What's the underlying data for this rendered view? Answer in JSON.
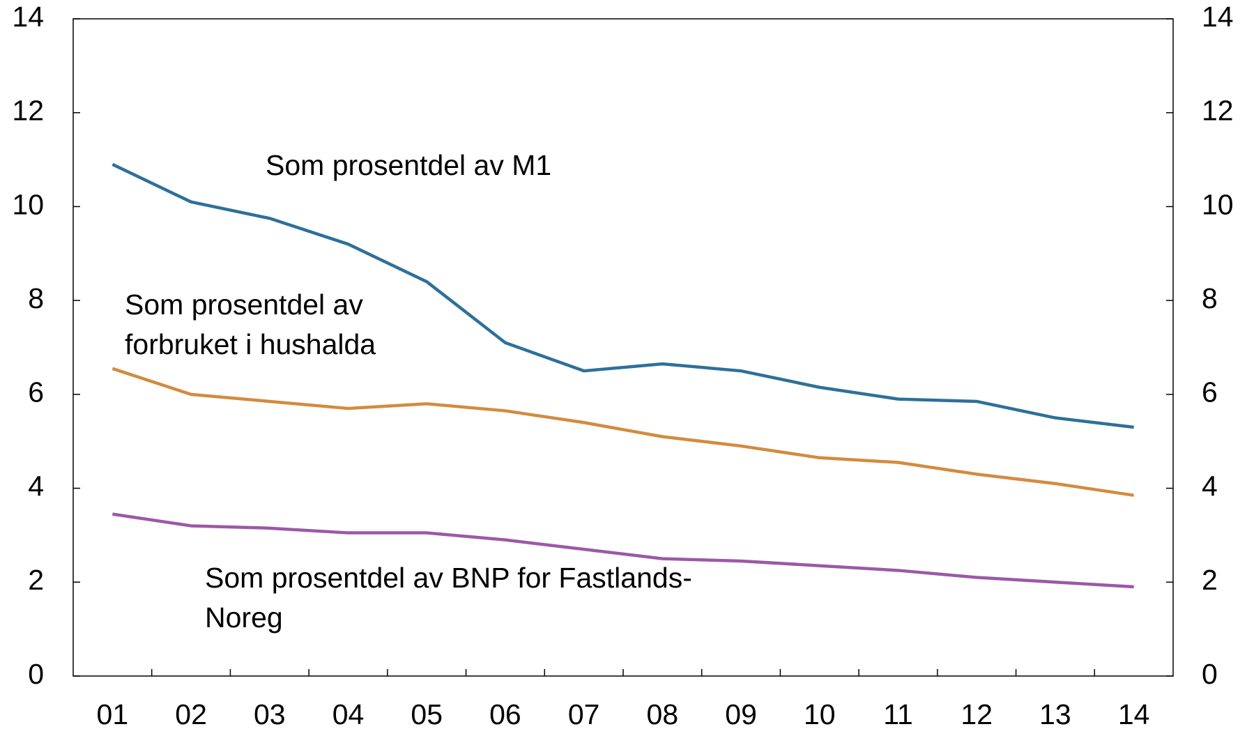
{
  "chart_data": {
    "type": "line",
    "categories": [
      "01",
      "02",
      "03",
      "04",
      "05",
      "06",
      "07",
      "08",
      "09",
      "10",
      "11",
      "12",
      "13",
      "14"
    ],
    "series": [
      {
        "color": "#2e7099",
        "values": [
          10.9,
          10.1,
          9.75,
          9.2,
          8.4,
          7.1,
          6.5,
          6.65,
          6.5,
          6.15,
          5.9,
          5.85,
          5.5,
          5.3
        ]
      },
      {
        "color": "#d38b3f",
        "values": [
          6.55,
          6.0,
          5.85,
          5.7,
          5.8,
          5.65,
          5.4,
          5.1,
          4.9,
          4.65,
          4.55,
          4.3,
          4.1,
          3.85
        ]
      },
      {
        "color": "#9b59a6",
        "values": [
          3.45,
          3.2,
          3.15,
          3.05,
          3.05,
          2.9,
          2.7,
          2.5,
          2.45,
          2.35,
          2.25,
          2.1,
          2.0,
          1.9
        ]
      }
    ],
    "annotations": [
      {
        "lines": [
          "Som prosentdel av M1"
        ]
      },
      {
        "lines": [
          "Som prosentdel av",
          "forbruket i hushalda"
        ]
      },
      {
        "lines": [
          "Som prosentdel av BNP for Fastlands-",
          "Noreg"
        ]
      }
    ],
    "ylim": [
      0,
      14
    ],
    "yticks": [
      0,
      2,
      4,
      6,
      8,
      10,
      12,
      14
    ],
    "y2lim": [
      0,
      14
    ],
    "y2ticks": [
      0,
      2,
      4,
      6,
      8,
      10,
      12,
      14
    ]
  }
}
